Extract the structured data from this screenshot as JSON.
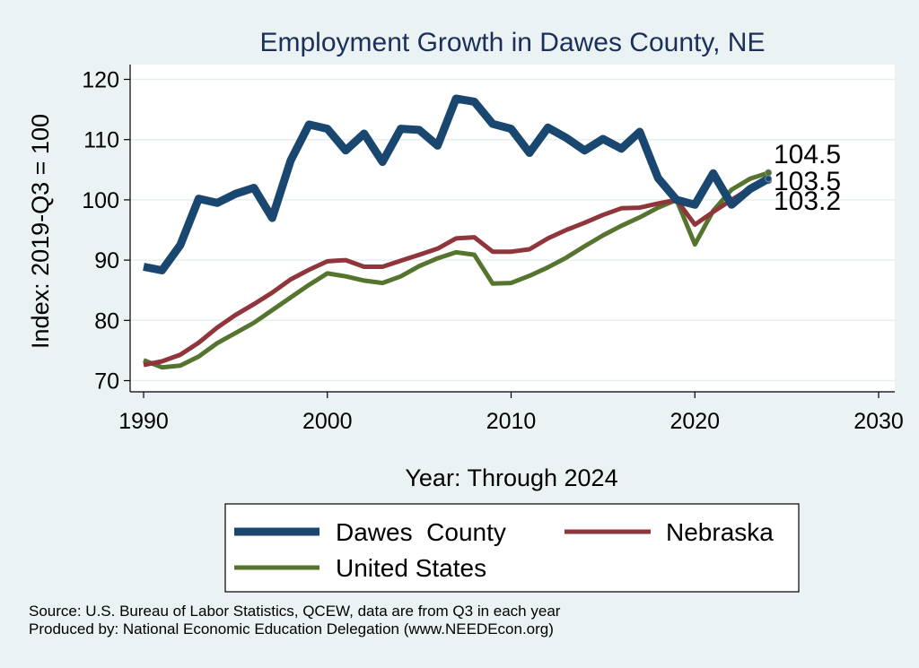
{
  "chart_data": {
    "type": "line",
    "title": "Employment Growth in Dawes County, NE",
    "xlabel": "Year: Through 2024",
    "ylabel": "Index: 2019-Q3 = 100",
    "xlim": [
      1990,
      2030
    ],
    "ylim": [
      68,
      122
    ],
    "x_ticks": [
      1990,
      2000,
      2010,
      2020,
      2030
    ],
    "y_ticks": [
      70,
      80,
      90,
      100,
      110,
      120
    ],
    "x": [
      1990,
      1991,
      1992,
      1993,
      1994,
      1995,
      1996,
      1997,
      1998,
      1999,
      2000,
      2001,
      2002,
      2003,
      2004,
      2005,
      2006,
      2007,
      2008,
      2009,
      2010,
      2011,
      2012,
      2013,
      2014,
      2015,
      2016,
      2017,
      2018,
      2019,
      2020,
      2021,
      2022,
      2023,
      2024
    ],
    "series": [
      {
        "name": "Dawes  County",
        "color": "#1a476f",
        "values": [
          88.9,
          88.3,
          92.5,
          100.2,
          99.5,
          101.0,
          102.0,
          97.0,
          106.5,
          112.5,
          111.8,
          108.2,
          111.0,
          106.3,
          111.8,
          111.6,
          109.0,
          116.8,
          116.3,
          112.6,
          111.8,
          107.8,
          112.0,
          110.3,
          108.2,
          110.1,
          108.5,
          111.3,
          103.6,
          100.0,
          99.2,
          104.4,
          99.2,
          101.8,
          103.5
        ],
        "end_label": "103.5"
      },
      {
        "name": "Nebraska",
        "color": "#90353b",
        "values": [
          72.6,
          73.2,
          74.3,
          76.3,
          78.8,
          80.9,
          82.7,
          84.6,
          86.8,
          88.4,
          89.8,
          90.0,
          88.9,
          88.9,
          89.9,
          90.9,
          91.9,
          93.6,
          93.8,
          91.4,
          91.4,
          91.8,
          93.6,
          95.0,
          96.2,
          97.5,
          98.6,
          98.7,
          99.4,
          100.0,
          95.9,
          98.0,
          100.0,
          101.9,
          103.2
        ],
        "end_label": "103.2"
      },
      {
        "name": "United States",
        "color": "#55752f",
        "values": [
          73.4,
          72.2,
          72.5,
          74.0,
          76.2,
          77.9,
          79.6,
          81.7,
          83.8,
          85.9,
          87.8,
          87.3,
          86.6,
          86.2,
          87.3,
          89.0,
          90.3,
          91.3,
          90.9,
          86.1,
          86.2,
          87.4,
          88.8,
          90.4,
          92.3,
          94.1,
          95.7,
          97.1,
          98.7,
          100.0,
          92.6,
          98.2,
          101.7,
          103.5,
          104.5
        ],
        "end_label": "104.5"
      }
    ],
    "legend": {
      "placement": "bottom",
      "entries": [
        "Dawes  County",
        "Nebraska",
        "United States"
      ]
    },
    "grid": true
  },
  "footer": {
    "source": "Source: U.S. Bureau of Labor Statistics, QCEW, data are from Q3 in each year",
    "produced_by": "Produced by: National Economic Education Delegation (www.NEEDEcon.org)"
  }
}
